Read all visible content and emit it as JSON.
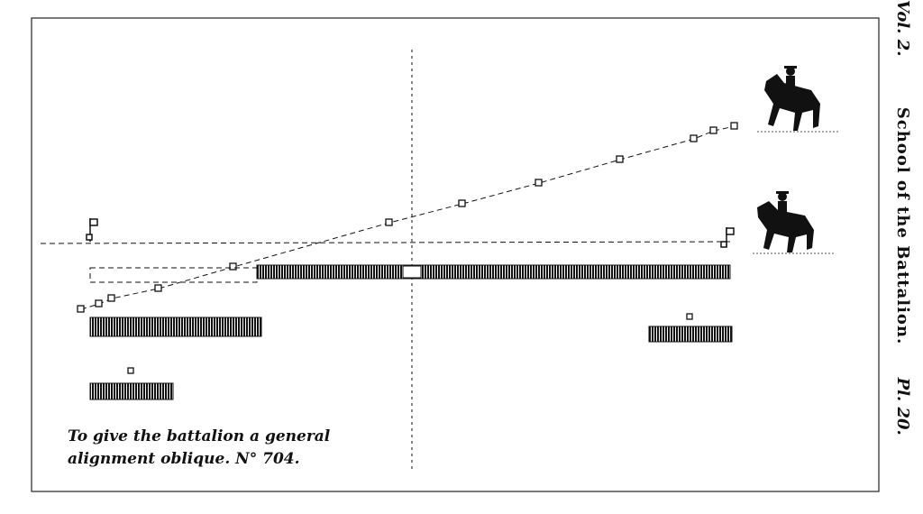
{
  "plate": {
    "volume": "Vol. 2.",
    "title": "School of the Battalion.",
    "plate_number": "Pl. 20."
  },
  "caption": {
    "line1": "To give the battalion a general",
    "line2": "alignment oblique. N° 704."
  },
  "colors": {
    "ink": "#111111",
    "paper": "#ffffff"
  },
  "figures": [
    "mounted-officer",
    "mounted-officer",
    "marker-flag",
    "marker-flag"
  ]
}
